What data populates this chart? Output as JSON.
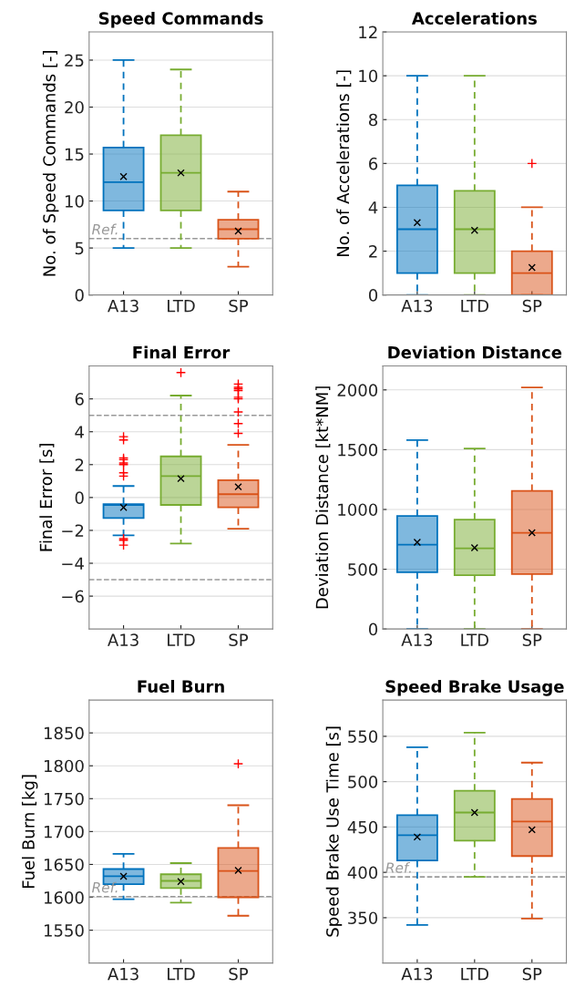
{
  "chart_data": [
    {
      "type": "box",
      "title": "Speed Commands",
      "ylabel": "No. of Speed Commands [-]",
      "categories": [
        "A13",
        "LTD",
        "SP"
      ],
      "colors": [
        "#0072bd",
        "#77ac30",
        "#d95319"
      ],
      "ylim": [
        0,
        28
      ],
      "yticks": [
        0,
        5,
        10,
        15,
        20,
        25
      ],
      "grid": "y",
      "ref_lines": [
        {
          "axis": "y",
          "value": 6,
          "label": "Ref."
        }
      ],
      "boxes": [
        {
          "low": 5,
          "q1": 9,
          "median": 12,
          "q3": 15.7,
          "high": 25,
          "mean": 12.6
        },
        {
          "low": 5,
          "q1": 9,
          "median": 13,
          "q3": 17,
          "high": 24,
          "mean": 13
        },
        {
          "low": 3,
          "q1": 6,
          "median": 7,
          "q3": 8,
          "high": 11,
          "mean": 6.8
        }
      ]
    },
    {
      "type": "box",
      "title": "Accelerations",
      "ylabel": "No. of Accelerations [-]",
      "categories": [
        "A13",
        "LTD",
        "SP"
      ],
      "colors": [
        "#0072bd",
        "#77ac30",
        "#d95319"
      ],
      "ylim": [
        0,
        12
      ],
      "yticks": [
        0,
        2,
        4,
        6,
        8,
        10,
        12
      ],
      "grid": "y",
      "boxes": [
        {
          "low": 0,
          "q1": 1,
          "median": 3,
          "q3": 5,
          "high": 10,
          "mean": 3.3
        },
        {
          "low": 0,
          "q1": 1,
          "median": 3,
          "q3": 4.75,
          "high": 10,
          "mean": 2.95
        },
        {
          "low": 0,
          "q1": 0,
          "median": 1,
          "q3": 2,
          "high": 4,
          "mean": 1.25,
          "outliers": [
            6
          ]
        }
      ]
    },
    {
      "type": "box",
      "title": "Final Error",
      "ylabel": "Final Error [s]",
      "categories": [
        "A13",
        "LTD",
        "SP"
      ],
      "colors": [
        "#0072bd",
        "#77ac30",
        "#d95319"
      ],
      "ylim": [
        -8,
        8
      ],
      "yticks": [
        {
          "value": -6,
          "label": "−6"
        },
        {
          "value": -4,
          "label": "−4"
        },
        {
          "value": -2,
          "label": "−2"
        },
        0,
        2,
        4,
        6
      ],
      "grid": "y",
      "ref_lines": [
        {
          "axis": "y",
          "value": 5
        },
        {
          "axis": "y",
          "value": -5
        }
      ],
      "boxes": [
        {
          "low": -2.3,
          "q1": -1.25,
          "median": -0.45,
          "q3": -0.4,
          "high": 0.7,
          "mean": -0.6,
          "outliers": [
            3.7,
            3.5,
            2.4,
            2.3,
            2.1,
            2.0,
            1.5,
            1.3,
            -2.5,
            -2.6,
            -2.9
          ]
        },
        {
          "low": -2.8,
          "q1": -0.45,
          "median": 1.3,
          "q3": 2.5,
          "high": 6.2,
          "mean": 1.15,
          "outliers": [
            7.6
          ]
        },
        {
          "low": -1.9,
          "q1": -0.6,
          "median": 0.2,
          "q3": 1.05,
          "high": 3.2,
          "mean": 0.65,
          "outliers": [
            6.9,
            6.7,
            6.6,
            6.5,
            6.1,
            6.0,
            5.2,
            4.5,
            3.9
          ]
        }
      ]
    },
    {
      "type": "box",
      "title": "Deviation Distance",
      "ylabel": "Deviation Distance [kt*NM]",
      "categories": [
        "A13",
        "LTD",
        "SP"
      ],
      "colors": [
        "#0072bd",
        "#77ac30",
        "#d95319"
      ],
      "ylim": [
        0,
        2200
      ],
      "yticks": [
        0,
        500,
        1000,
        1500,
        2000
      ],
      "grid": "y",
      "boxes": [
        {
          "low": 0,
          "q1": 475,
          "median": 705,
          "q3": 945,
          "high": 1580,
          "mean": 725
        },
        {
          "low": 0,
          "q1": 450,
          "median": 675,
          "q3": 915,
          "high": 1510,
          "mean": 680
        },
        {
          "low": 0,
          "q1": 460,
          "median": 805,
          "q3": 1155,
          "high": 2020,
          "mean": 805
        }
      ]
    },
    {
      "type": "box",
      "title": "Fuel Burn",
      "ylabel": "Fuel Burn [kg]",
      "categories": [
        "A13",
        "LTD",
        "SP"
      ],
      "colors": [
        "#0072bd",
        "#77ac30",
        "#d95319"
      ],
      "ylim": [
        1500,
        1900
      ],
      "yticks": [
        1550,
        1600,
        1650,
        1700,
        1750,
        1800,
        1850
      ],
      "grid": "y",
      "ref_lines": [
        {
          "axis": "y",
          "value": 1601,
          "label": "Ref."
        }
      ],
      "boxes": [
        {
          "low": 1597,
          "q1": 1620,
          "median": 1632,
          "q3": 1643,
          "high": 1666,
          "mean": 1632
        },
        {
          "low": 1592,
          "q1": 1614,
          "median": 1625,
          "q3": 1635,
          "high": 1652,
          "mean": 1624
        },
        {
          "low": 1572,
          "q1": 1600,
          "median": 1640,
          "q3": 1675,
          "high": 1740,
          "mean": 1641,
          "outliers": [
            1803
          ]
        }
      ]
    },
    {
      "type": "box",
      "title": "Speed Brake Usage",
      "ylabel": "Speed Brake Use Time [s]",
      "categories": [
        "A13",
        "LTD",
        "SP"
      ],
      "colors": [
        "#0072bd",
        "#77ac30",
        "#d95319"
      ],
      "ylim": [
        300,
        590
      ],
      "yticks": [
        350,
        400,
        450,
        500,
        550
      ],
      "grid": "y",
      "ref_lines": [
        {
          "axis": "y",
          "value": 395,
          "label": "Ref."
        }
      ],
      "boxes": [
        {
          "low": 342,
          "q1": 413,
          "median": 441,
          "q3": 463,
          "high": 538,
          "mean": 439
        },
        {
          "low": 395,
          "q1": 435,
          "median": 466,
          "q3": 490,
          "high": 554,
          "mean": 466
        },
        {
          "low": 349,
          "q1": 418,
          "median": 456,
          "q3": 481,
          "high": 521,
          "mean": 447
        }
      ]
    }
  ]
}
